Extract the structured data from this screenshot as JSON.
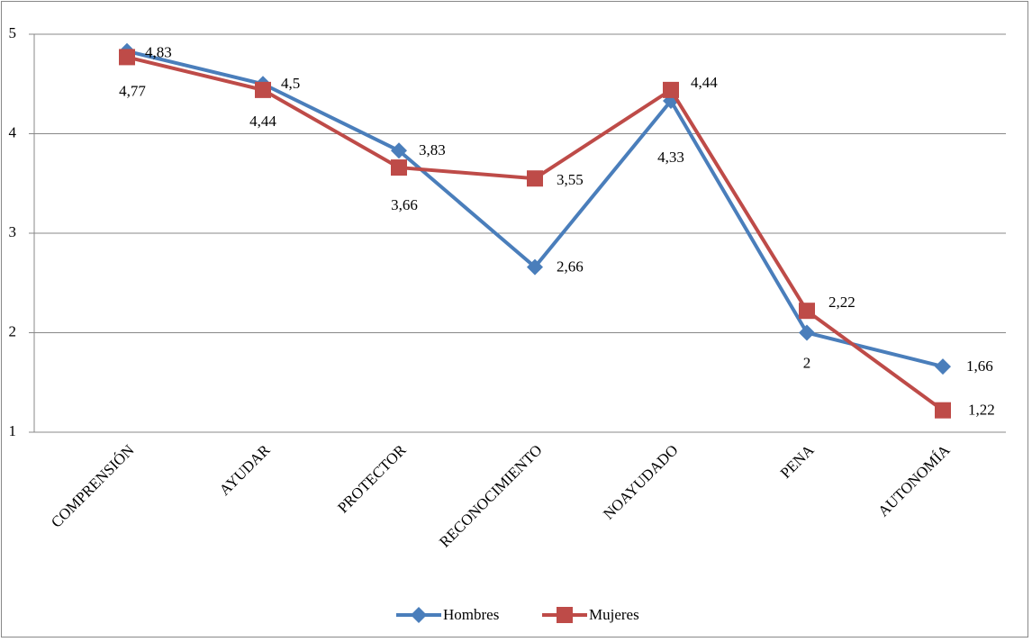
{
  "chart_data": {
    "type": "line",
    "categories": [
      "COMPRENSIÓN",
      "AYUDAR",
      "PROTECTOR",
      "RECONOCIMIENTO",
      "NOAYUDADO",
      "PENA",
      "AUTONOMÍA"
    ],
    "series": [
      {
        "name": "Hombres",
        "color": "#4a7ebb",
        "marker": "diamond",
        "values": [
          4.83,
          4.5,
          3.83,
          2.66,
          4.33,
          2,
          1.66
        ],
        "value_labels": [
          "4,83",
          "4,5",
          "3,83",
          "2,66",
          "4,33",
          "2",
          "1,66"
        ]
      },
      {
        "name": "Mujeres",
        "color": "#be4b48",
        "marker": "square",
        "values": [
          4.77,
          4.44,
          3.66,
          3.55,
          4.44,
          2.22,
          1.22
        ],
        "value_labels": [
          "4,77",
          "4,44",
          "3,66",
          "3,55",
          "4,44",
          "2,22",
          "1,22"
        ]
      }
    ],
    "ylim": [
      1,
      5
    ],
    "yticks": [
      1,
      2,
      3,
      4,
      5
    ],
    "grid": true,
    "legend": "bottom"
  }
}
